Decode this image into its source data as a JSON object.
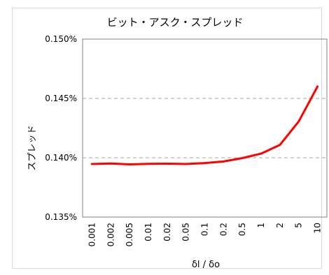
{
  "chart_data": {
    "type": "line",
    "title": "ビット・アスク・スプレッド",
    "xlabel": "δl / δo",
    "ylabel": "スプレッド",
    "categories": [
      "0.001",
      "0.002",
      "0.005",
      "0.01",
      "0.02",
      "0.05",
      "0.1",
      "0.2",
      "0.5",
      "1",
      "2",
      "5",
      "10"
    ],
    "series": [
      {
        "values": [
          0.13947,
          0.13952,
          0.13944,
          0.13948,
          0.1395,
          0.13947,
          0.13955,
          0.13968,
          0.13997,
          0.14035,
          0.14108,
          0.14305,
          0.146
        ],
        "color": "#ff0000"
      }
    ],
    "ylim": [
      0.135,
      0.15
    ],
    "yticks": [
      0.135,
      0.14,
      0.145,
      0.15
    ],
    "ytick_labels": [
      "0.135%",
      "0.140%",
      "0.145%",
      "0.150%"
    ],
    "grid": "horizontal-dashed",
    "legend": "none"
  }
}
